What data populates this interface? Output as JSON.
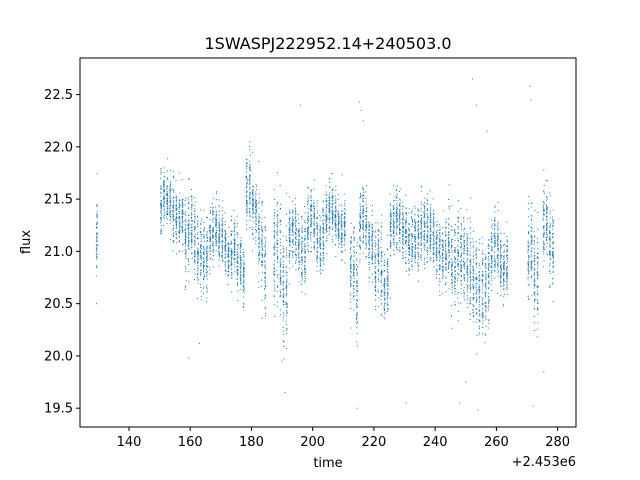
{
  "chart_data": {
    "type": "scatter",
    "title": "1SWASPJ222952.14+240503.0",
    "xlabel": "time",
    "ylabel": "flux",
    "x_offset_label": "+2.453e6",
    "xlim": [
      124,
      286
    ],
    "ylim": [
      19.32,
      22.85
    ],
    "xticks": [
      140,
      160,
      180,
      200,
      220,
      240,
      260,
      280
    ],
    "xtick_labels": [
      "140",
      "160",
      "180",
      "200",
      "220",
      "240",
      "260",
      "280"
    ],
    "yticks": [
      19.5,
      20.0,
      20.5,
      21.0,
      21.5,
      22.0,
      22.5
    ],
    "ytick_labels": [
      "19.5",
      "20.0",
      "20.5",
      "21.0",
      "21.5",
      "22.0",
      "22.5"
    ],
    "grid": false,
    "marker_color": "#1f77b4",
    "segments": [
      {
        "x0": 129,
        "x1": 130,
        "mean": 21.0,
        "spread": 0.28
      },
      {
        "x0": 150,
        "x1": 158,
        "mean": 21.4,
        "spread": 0.2
      },
      {
        "x0": 158,
        "x1": 166,
        "mean": 21.05,
        "spread": 0.25
      },
      {
        "x0": 166,
        "x1": 175,
        "mean": 21.1,
        "spread": 0.2
      },
      {
        "x0": 175,
        "x1": 178,
        "mean": 20.85,
        "spread": 0.2
      },
      {
        "x0": 178,
        "x1": 182,
        "mean": 21.5,
        "spread": 0.22
      },
      {
        "x0": 182,
        "x1": 185,
        "mean": 21.0,
        "spread": 0.3
      },
      {
        "x0": 187,
        "x1": 192,
        "mean": 20.85,
        "spread": 0.4
      },
      {
        "x0": 192,
        "x1": 198,
        "mean": 21.1,
        "spread": 0.22
      },
      {
        "x0": 198,
        "x1": 204,
        "mean": 21.2,
        "spread": 0.2
      },
      {
        "x0": 204,
        "x1": 211,
        "mean": 21.3,
        "spread": 0.18
      },
      {
        "x0": 212,
        "x1": 215,
        "mean": 20.75,
        "spread": 0.3
      },
      {
        "x0": 215,
        "x1": 220,
        "mean": 21.2,
        "spread": 0.22
      },
      {
        "x0": 220,
        "x1": 225,
        "mean": 20.8,
        "spread": 0.25
      },
      {
        "x0": 225,
        "x1": 234,
        "mean": 21.2,
        "spread": 0.2
      },
      {
        "x0": 234,
        "x1": 245,
        "mean": 21.1,
        "spread": 0.22
      },
      {
        "x0": 245,
        "x1": 258,
        "mean": 20.8,
        "spread": 0.3
      },
      {
        "x0": 258,
        "x1": 264,
        "mean": 20.95,
        "spread": 0.22
      },
      {
        "x0": 270,
        "x1": 274,
        "mean": 20.9,
        "spread": 0.3
      },
      {
        "x0": 275,
        "x1": 279,
        "mean": 21.15,
        "spread": 0.25
      }
    ],
    "outliers": [
      {
        "x": 129.5,
        "y": 21.35
      },
      {
        "x": 129.4,
        "y": 20.5
      },
      {
        "x": 159.5,
        "y": 19.98
      },
      {
        "x": 163.0,
        "y": 20.12
      },
      {
        "x": 190.0,
        "y": 19.95
      },
      {
        "x": 191.0,
        "y": 19.65
      },
      {
        "x": 196.0,
        "y": 22.4
      },
      {
        "x": 215.2,
        "y": 22.43
      },
      {
        "x": 215.8,
        "y": 22.35
      },
      {
        "x": 216.5,
        "y": 22.25
      },
      {
        "x": 214.5,
        "y": 19.5
      },
      {
        "x": 230.5,
        "y": 19.55
      },
      {
        "x": 248.0,
        "y": 19.55
      },
      {
        "x": 250.0,
        "y": 19.75
      },
      {
        "x": 252.2,
        "y": 22.65
      },
      {
        "x": 253.5,
        "y": 22.4
      },
      {
        "x": 254.0,
        "y": 19.48
      },
      {
        "x": 257.0,
        "y": 22.15
      },
      {
        "x": 271.0,
        "y": 22.58
      },
      {
        "x": 271.3,
        "y": 22.45
      },
      {
        "x": 272.0,
        "y": 19.52
      },
      {
        "x": 275.5,
        "y": 19.85
      }
    ]
  }
}
